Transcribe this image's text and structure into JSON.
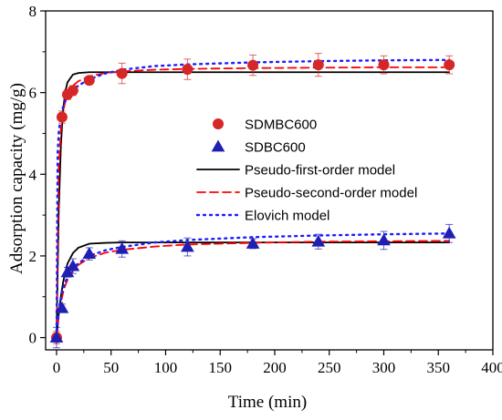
{
  "chart_data": {
    "type": "scatter",
    "xlabel": "Time (min)",
    "ylabel": "Adsorption capacity (mg/g)",
    "xlim": [
      -10,
      400
    ],
    "ylim": [
      -0.3,
      8
    ],
    "xticks": [
      "0",
      "50",
      "100",
      "150",
      "200",
      "250",
      "300",
      "350",
      "400"
    ],
    "yticks": [
      "0",
      "2",
      "4",
      "6",
      "8"
    ],
    "legend_position": "center",
    "series": [
      {
        "name": "SDMBC600",
        "kind": "points",
        "marker": "circle",
        "color": "#d62728",
        "x": [
          0,
          5,
          10,
          15,
          30,
          60,
          120,
          180,
          240,
          300,
          360
        ],
        "y": [
          0.0,
          5.4,
          5.95,
          6.05,
          6.3,
          6.47,
          6.57,
          6.67,
          6.68,
          6.68,
          6.68
        ],
        "err": [
          0.15,
          0.15,
          0.12,
          0.12,
          0.1,
          0.25,
          0.25,
          0.25,
          0.28,
          0.22,
          0.22
        ]
      },
      {
        "name": "SDBC600",
        "kind": "points",
        "marker": "triangle",
        "color": "#1f1fb4",
        "x": [
          0,
          5,
          10,
          15,
          30,
          60,
          120,
          180,
          240,
          300,
          360
        ],
        "y": [
          0.0,
          0.72,
          1.6,
          1.75,
          2.05,
          2.17,
          2.22,
          2.3,
          2.35,
          2.38,
          2.55
        ],
        "err": [
          0.25,
          0.1,
          0.12,
          0.18,
          0.15,
          0.2,
          0.22,
          0.12,
          0.18,
          0.22,
          0.22
        ]
      },
      {
        "name": "Pseudo-first-order model",
        "kind": "line",
        "style": "solid",
        "color": "#000000",
        "x": [
          0,
          2,
          4,
          6,
          8,
          10,
          15,
          20,
          30,
          45,
          60,
          90,
          120,
          180,
          240,
          300,
          360
        ],
        "y1": [
          0,
          3.1,
          4.72,
          5.57,
          6.02,
          6.25,
          6.44,
          6.48,
          6.5,
          6.5,
          6.5,
          6.5,
          6.5,
          6.5,
          6.5,
          6.5,
          6.5
        ],
        "y2": [
          0,
          0.57,
          1.01,
          1.35,
          1.61,
          1.81,
          2.07,
          2.2,
          2.3,
          2.32,
          2.33,
          2.33,
          2.33,
          2.33,
          2.33,
          2.33,
          2.33
        ]
      },
      {
        "name": "Pseudo-second-order model",
        "kind": "line",
        "style": "dashed",
        "color": "#ff0000",
        "x": [
          0,
          2,
          4,
          6,
          8,
          10,
          15,
          20,
          30,
          45,
          60,
          90,
          120,
          180,
          240,
          300,
          360
        ],
        "y1": [
          0,
          4.13,
          5.1,
          5.53,
          5.78,
          5.94,
          6.17,
          6.28,
          6.4,
          6.48,
          6.52,
          6.56,
          6.58,
          6.6,
          6.61,
          6.62,
          6.62
        ],
        "y2": [
          0,
          0.52,
          0.86,
          1.1,
          1.28,
          1.41,
          1.64,
          1.78,
          1.95,
          2.08,
          2.15,
          2.23,
          2.28,
          2.32,
          2.35,
          2.36,
          2.37
        ]
      },
      {
        "name": "Elovich model",
        "kind": "line",
        "style": "dotted",
        "color": "#1f1fff",
        "x": [
          0,
          1,
          2,
          4,
          6,
          8,
          10,
          15,
          20,
          30,
          45,
          60,
          90,
          120,
          180,
          240,
          300,
          360
        ],
        "y1": [
          0,
          4.5,
          5.02,
          5.44,
          5.65,
          5.79,
          5.89,
          6.06,
          6.17,
          6.33,
          6.47,
          6.56,
          6.65,
          6.69,
          6.74,
          6.77,
          6.79,
          6.8
        ],
        "y2": [
          0,
          0.35,
          0.62,
          0.98,
          1.2,
          1.36,
          1.48,
          1.69,
          1.82,
          2.0,
          2.14,
          2.22,
          2.33,
          2.39,
          2.46,
          2.5,
          2.53,
          2.55
        ]
      }
    ]
  }
}
